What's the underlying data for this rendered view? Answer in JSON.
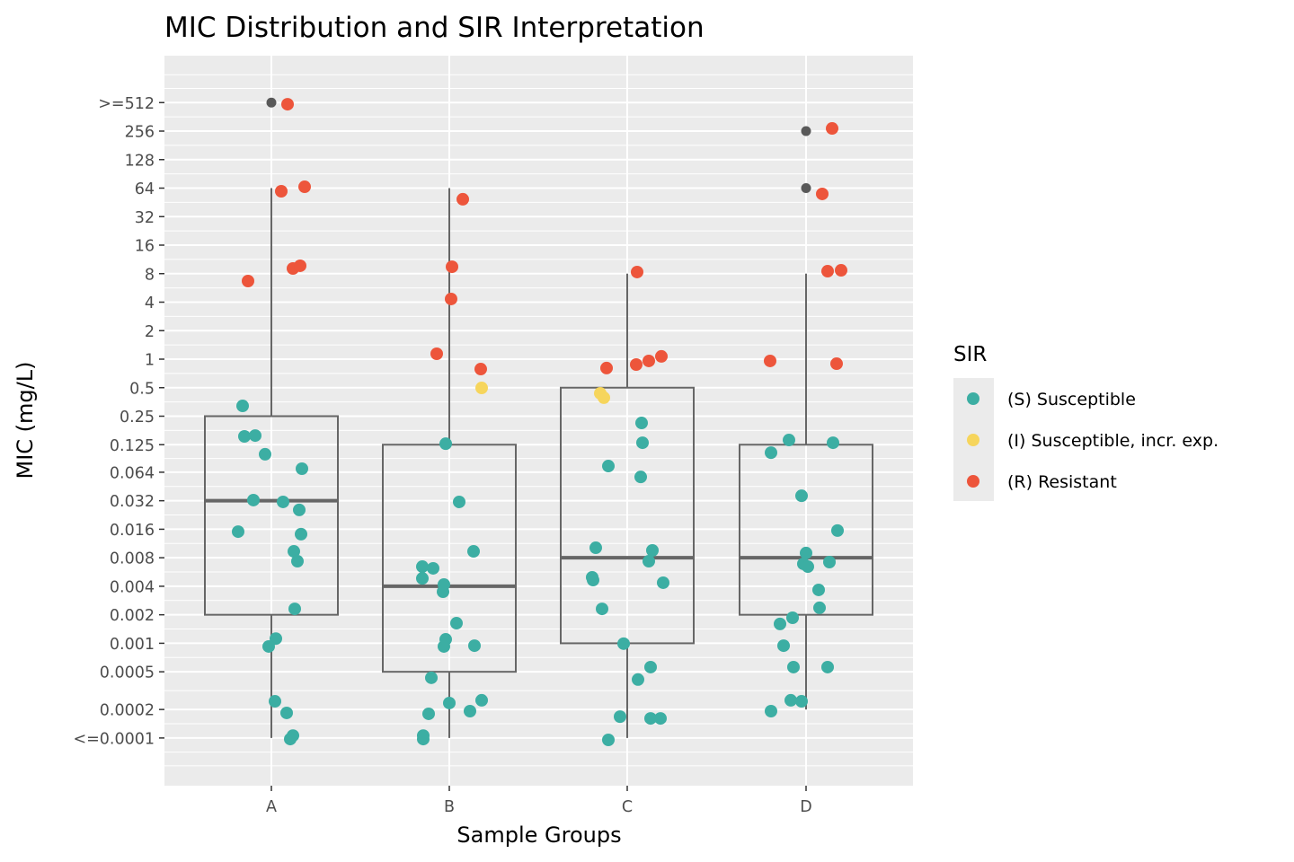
{
  "chart_data": {
    "type": "box",
    "title": "MIC Distribution and SIR Interpretation",
    "xlabel": "Sample Groups",
    "ylabel": "MIC (mg/L)",
    "y_scale": "log2",
    "grid": true,
    "categories": [
      "A",
      "B",
      "C",
      "D"
    ],
    "y_ticks": [
      {
        "value": 512,
        "label": ">=512"
      },
      {
        "value": 256,
        "label": "256"
      },
      {
        "value": 128,
        "label": "128"
      },
      {
        "value": 64,
        "label": "64"
      },
      {
        "value": 32,
        "label": "32"
      },
      {
        "value": 16,
        "label": "16"
      },
      {
        "value": 8,
        "label": "8"
      },
      {
        "value": 4,
        "label": "4"
      },
      {
        "value": 2,
        "label": "2"
      },
      {
        "value": 1,
        "label": "1"
      },
      {
        "value": 0.5,
        "label": "0.5"
      },
      {
        "value": 0.25,
        "label": "0.25"
      },
      {
        "value": 0.125,
        "label": "0.125"
      },
      {
        "value": 0.064,
        "label": "0.064"
      },
      {
        "value": 0.032,
        "label": "0.032"
      },
      {
        "value": 0.016,
        "label": "0.016"
      },
      {
        "value": 0.008,
        "label": "0.008"
      },
      {
        "value": 0.004,
        "label": "0.004"
      },
      {
        "value": 0.002,
        "label": "0.002"
      },
      {
        "value": 0.001,
        "label": "0.001"
      },
      {
        "value": 0.0005,
        "label": "0.0005"
      },
      {
        "value": 0.0002,
        "label": "0.0002"
      },
      {
        "value": 0.0001,
        "label": "<=0.0001"
      }
    ],
    "boxes": [
      {
        "group": "A",
        "whisker_low": 0.0001,
        "q1": 0.002,
        "median": 0.032,
        "q3": 0.25,
        "whisker_high": 64,
        "outliers": [
          512
        ]
      },
      {
        "group": "B",
        "whisker_low": 0.0001,
        "q1": 0.0005,
        "median": 0.004,
        "q3": 0.125,
        "whisker_high": 64,
        "outliers": []
      },
      {
        "group": "C",
        "whisker_low": 0.0001,
        "q1": 0.001,
        "median": 0.008,
        "q3": 0.5,
        "whisker_high": 8,
        "outliers": []
      },
      {
        "group": "D",
        "whisker_low": 0.0002,
        "q1": 0.002,
        "median": 0.008,
        "q3": 0.125,
        "whisker_high": 8,
        "outliers": [
          256,
          64
        ]
      }
    ],
    "legend": {
      "title": "SIR",
      "position": "right",
      "items": [
        {
          "key": "S",
          "label": "(S) Susceptible",
          "color": "#3CAEA3"
        },
        {
          "key": "I",
          "label": "(I) Susceptible, incr. exp.",
          "color": "#F6D55C"
        },
        {
          "key": "R",
          "label": "(R) Resistant",
          "color": "#ED553B"
        }
      ]
    },
    "outlier_color": "#595959",
    "points": [
      [
        "A",
        492,
        "R"
      ],
      [
        "A",
        59.3,
        "R"
      ],
      [
        "A",
        66.1,
        "R"
      ],
      [
        "A",
        9.07,
        "R"
      ],
      [
        "A",
        9.69,
        "R"
      ],
      [
        "A",
        6.68,
        "R"
      ],
      [
        "A",
        0.321,
        "S"
      ],
      [
        "A",
        0.153,
        "S"
      ],
      [
        "A",
        0.156,
        "S"
      ],
      [
        "A",
        0.099,
        "S"
      ],
      [
        "A",
        0.0697,
        "S"
      ],
      [
        "A",
        0.0325,
        "S"
      ],
      [
        "A",
        0.0311,
        "S"
      ],
      [
        "A",
        0.0256,
        "S"
      ],
      [
        "A",
        0.0151,
        "S"
      ],
      [
        "A",
        0.0142,
        "S"
      ],
      [
        "A",
        0.00935,
        "S"
      ],
      [
        "A",
        0.00735,
        "S"
      ],
      [
        "A",
        0.00231,
        "S"
      ],
      [
        "A",
        0.00112,
        "S"
      ],
      [
        "A",
        0.000925,
        "S"
      ],
      [
        "A",
        0.000244,
        "S"
      ],
      [
        "A",
        0.000184,
        "S"
      ],
      [
        "A",
        0.000106,
        "S"
      ],
      [
        "A",
        9.74e-05,
        "S"
      ],
      [
        "B",
        48.8,
        "R"
      ],
      [
        "B",
        9.46,
        "R"
      ],
      [
        "B",
        4.32,
        "R"
      ],
      [
        "B",
        1.14,
        "R"
      ],
      [
        "B",
        0.786,
        "R"
      ],
      [
        "B",
        0.497,
        "I"
      ],
      [
        "B",
        0.128,
        "S"
      ],
      [
        "B",
        0.0311,
        "S"
      ],
      [
        "B",
        0.00935,
        "S"
      ],
      [
        "B",
        0.00645,
        "S"
      ],
      [
        "B",
        0.00618,
        "S"
      ],
      [
        "B",
        0.00484,
        "S"
      ],
      [
        "B",
        0.00417,
        "S"
      ],
      [
        "B",
        0.0035,
        "S"
      ],
      [
        "B",
        0.00163,
        "S"
      ],
      [
        "B",
        0.0011,
        "S"
      ],
      [
        "B",
        0.000925,
        "S"
      ],
      [
        "B",
        0.000943,
        "S"
      ],
      [
        "B",
        0.000432,
        "S"
      ],
      [
        "B",
        0.000234,
        "S"
      ],
      [
        "B",
        0.00025,
        "S"
      ],
      [
        "B",
        0.00018,
        "S"
      ],
      [
        "B",
        0.000192,
        "S"
      ],
      [
        "B",
        0.000106,
        "S"
      ],
      [
        "B",
        9.74e-05,
        "S"
      ],
      [
        "C",
        8.32,
        "R"
      ],
      [
        "C",
        0.805,
        "R"
      ],
      [
        "C",
        0.877,
        "R"
      ],
      [
        "C",
        0.958,
        "R"
      ],
      [
        "C",
        1.07,
        "R"
      ],
      [
        "C",
        0.436,
        "I"
      ],
      [
        "C",
        0.392,
        "I"
      ],
      [
        "C",
        0.212,
        "S"
      ],
      [
        "C",
        0.131,
        "S"
      ],
      [
        "C",
        0.0744,
        "S"
      ],
      [
        "C",
        0.0571,
        "S"
      ],
      [
        "C",
        0.0102,
        "S"
      ],
      [
        "C",
        0.00956,
        "S"
      ],
      [
        "C",
        0.00735,
        "S"
      ],
      [
        "C",
        0.00497,
        "S"
      ],
      [
        "C",
        0.00465,
        "S"
      ],
      [
        "C",
        0.00436,
        "S"
      ],
      [
        "C",
        0.00231,
        "S"
      ],
      [
        "C",
        0.000991,
        "S"
      ],
      [
        "C",
        0.00056,
        "S"
      ],
      [
        "C",
        0.000414,
        "S"
      ],
      [
        "C",
        0.000168,
        "S"
      ],
      [
        "C",
        0.000161,
        "S"
      ],
      [
        "C",
        0.000161,
        "S"
      ],
      [
        "C",
        9.55e-05,
        "S"
      ],
      [
        "D",
        273,
        "R"
      ],
      [
        "D",
        55.6,
        "R"
      ],
      [
        "D",
        8.49,
        "R"
      ],
      [
        "D",
        8.68,
        "R"
      ],
      [
        "D",
        0.958,
        "R"
      ],
      [
        "D",
        0.896,
        "R"
      ],
      [
        "D",
        0.14,
        "S"
      ],
      [
        "D",
        0.103,
        "S"
      ],
      [
        "D",
        0.131,
        "S"
      ],
      [
        "D",
        0.0361,
        "S"
      ],
      [
        "D",
        0.0155,
        "S"
      ],
      [
        "D",
        0.00897,
        "S"
      ],
      [
        "D",
        0.0069,
        "S"
      ],
      [
        "D",
        0.00645,
        "S"
      ],
      [
        "D",
        0.0072,
        "S"
      ],
      [
        "D",
        0.00366,
        "S"
      ],
      [
        "D",
        0.00237,
        "S"
      ],
      [
        "D",
        0.00186,
        "S"
      ],
      [
        "D",
        0.0016,
        "S"
      ],
      [
        "D",
        0.000943,
        "S"
      ],
      [
        "D",
        0.00056,
        "S"
      ],
      [
        "D",
        0.00056,
        "S"
      ],
      [
        "D",
        0.00025,
        "S"
      ],
      [
        "D",
        0.000244,
        "S"
      ],
      [
        "D",
        0.000192,
        "S"
      ]
    ]
  }
}
